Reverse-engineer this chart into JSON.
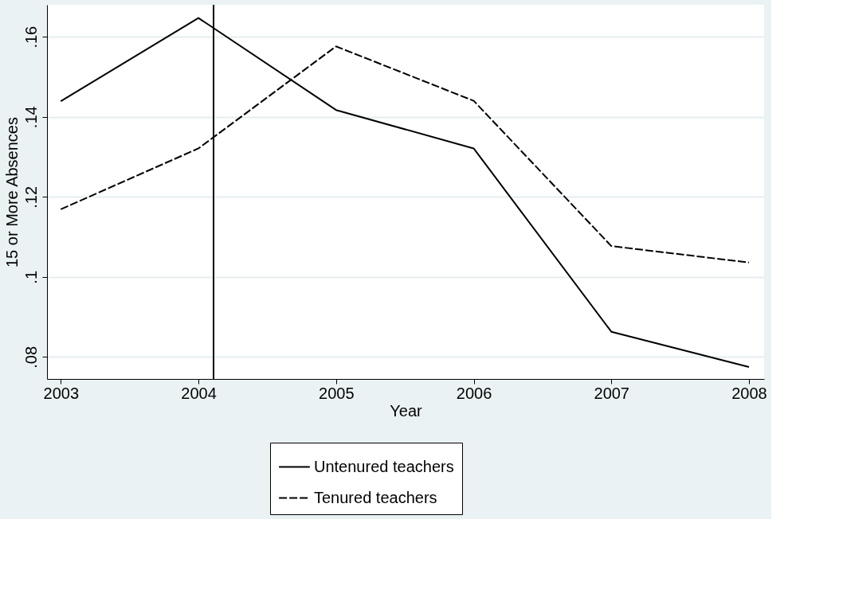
{
  "chart_data": {
    "type": "line",
    "xlabel": "Year",
    "ylabel": "15 or More Absences",
    "x": [
      2003,
      2004,
      2005,
      2006,
      2007,
      2008
    ],
    "series": [
      {
        "name": "Untenured teachers",
        "color": "#000000",
        "line_style": "solid",
        "values": [
          0.1439,
          0.1647,
          0.1417,
          0.1321,
          0.0863,
          0.0775
        ]
      },
      {
        "name": "Tenured teachers",
        "color": "#000000",
        "line_style": "dashed",
        "values": [
          0.1169,
          0.1321,
          0.1576,
          0.144,
          0.1077,
          0.1036
        ]
      }
    ],
    "xlim": [
      2002.9,
      2008.11
    ],
    "xticks": [
      2003,
      2004,
      2005,
      2006,
      2007,
      2008
    ],
    "ylim": [
      0.0745,
      0.168
    ],
    "yticks": [
      {
        "value": 0.08,
        "label": ".08"
      },
      {
        "value": 0.1,
        "label": ".1"
      },
      {
        "value": 0.12,
        "label": ".12"
      },
      {
        "value": 0.14,
        "label": ".14"
      },
      {
        "value": 0.16,
        "label": ".16"
      }
    ],
    "ref_lines": [
      {
        "axis": "x",
        "value": 2004.11,
        "color": "#000000"
      }
    ],
    "grid": "y",
    "legend": "bottom",
    "marker": "none"
  }
}
